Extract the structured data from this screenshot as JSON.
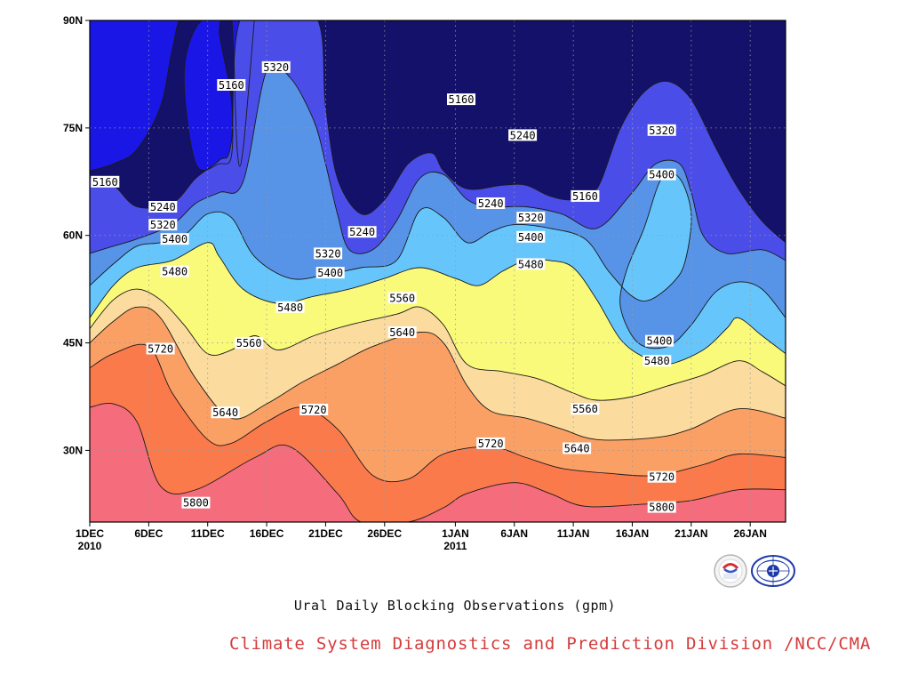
{
  "chart_data": {
    "type": "contour",
    "title": "Ural Daily Blocking Observations (gpm)",
    "credit": "Climate System Diagnostics and Prediction Division /NCC/CMA",
    "x_tick_labels": [
      {
        "t": 1,
        "line1": "1DEC",
        "line2": "2010"
      },
      {
        "t": 6,
        "line1": "6DEC",
        "line2": ""
      },
      {
        "t": 11,
        "line1": "11DEC",
        "line2": ""
      },
      {
        "t": 16,
        "line1": "16DEC",
        "line2": ""
      },
      {
        "t": 21,
        "line1": "21DEC",
        "line2": ""
      },
      {
        "t": 26,
        "line1": "26DEC",
        "line2": ""
      },
      {
        "t": 32,
        "line1": "1JAN",
        "line2": "2011"
      },
      {
        "t": 37,
        "line1": "6JAN",
        "line2": ""
      },
      {
        "t": 42,
        "line1": "11JAN",
        "line2": ""
      },
      {
        "t": 47,
        "line1": "16JAN",
        "line2": ""
      },
      {
        "t": 52,
        "line1": "21JAN",
        "line2": ""
      },
      {
        "t": 57,
        "line1": "26JAN",
        "line2": ""
      }
    ],
    "x_range": [
      1,
      60
    ],
    "y_tick_labels": [
      {
        "lat": 30,
        "label": "30N"
      },
      {
        "lat": 45,
        "label": "45N"
      },
      {
        "lat": 60,
        "label": "60N"
      },
      {
        "lat": 75,
        "label": "75N"
      },
      {
        "lat": 90,
        "label": "90N"
      }
    ],
    "y_range": [
      20,
      90
    ],
    "grid": true,
    "contour_levels": [
      5160,
      5240,
      5320,
      5400,
      5480,
      5560,
      5640,
      5720,
      5800
    ],
    "fill_colors": [
      "#13116a",
      "#1a17e6",
      "#4b4de9",
      "#5793e6",
      "#66c6fc",
      "#fafa7a",
      "#fbdc9e",
      "#fba065",
      "#fb7a4c",
      "#f56d7c"
    ],
    "contour_isolines": [
      {
        "level": 5800,
        "points": [
          [
            1,
            36
          ],
          [
            3,
            36.5
          ],
          [
            5,
            34
          ],
          [
            7,
            25
          ],
          [
            10,
            24.5
          ],
          [
            15,
            29
          ],
          [
            18,
            30.5
          ],
          [
            22,
            24
          ],
          [
            24,
            20
          ],
          [
            28,
            20
          ],
          [
            31,
            22
          ],
          [
            33,
            24
          ],
          [
            37,
            25.5
          ],
          [
            40,
            24
          ],
          [
            43,
            22.2
          ],
          [
            48,
            22.5
          ],
          [
            52,
            23
          ],
          [
            56,
            24.5
          ],
          [
            60,
            24.5
          ]
        ]
      },
      {
        "level": 5720,
        "points": [
          [
            1,
            41.5
          ],
          [
            3,
            43.5
          ],
          [
            6,
            44.5
          ],
          [
            8,
            38
          ],
          [
            11,
            31.5
          ],
          [
            13,
            31
          ],
          [
            16,
            34
          ],
          [
            19,
            36
          ],
          [
            22,
            33
          ],
          [
            25,
            26.5
          ],
          [
            28,
            26
          ],
          [
            31,
            29.5
          ],
          [
            35,
            30.5
          ],
          [
            38,
            29
          ],
          [
            41,
            27.5
          ],
          [
            45,
            26.8
          ],
          [
            49,
            26.5
          ],
          [
            53,
            28
          ],
          [
            56,
            29.5
          ],
          [
            60,
            29
          ]
        ]
      },
      {
        "level": 5640,
        "points": [
          [
            1,
            45
          ],
          [
            3,
            48
          ],
          [
            5,
            50
          ],
          [
            7,
            48.5
          ],
          [
            10,
            40
          ],
          [
            13,
            34.5
          ],
          [
            16,
            36.5
          ],
          [
            19,
            39.5
          ],
          [
            22,
            42
          ],
          [
            25,
            44.5
          ],
          [
            29,
            46.5
          ],
          [
            31,
            45
          ],
          [
            33,
            39
          ],
          [
            35,
            35.5
          ],
          [
            38,
            34.5
          ],
          [
            41,
            33
          ],
          [
            44,
            31.5
          ],
          [
            49,
            31.8
          ],
          [
            52,
            33
          ],
          [
            56,
            35.8
          ],
          [
            60,
            34.5
          ]
        ]
      },
      {
        "level": 5560,
        "points": [
          [
            1,
            47
          ],
          [
            3,
            51
          ],
          [
            5,
            52.5
          ],
          [
            7,
            51
          ],
          [
            9,
            47.5
          ],
          [
            11,
            43.5
          ],
          [
            13,
            44
          ],
          [
            15,
            46
          ],
          [
            17,
            44
          ],
          [
            20,
            46
          ],
          [
            23,
            47.5
          ],
          [
            27,
            49
          ],
          [
            29,
            50
          ],
          [
            31,
            47.5
          ],
          [
            33,
            42
          ],
          [
            36,
            41
          ],
          [
            39,
            40
          ],
          [
            42,
            38
          ],
          [
            44,
            37
          ],
          [
            47,
            37.5
          ],
          [
            50,
            39
          ],
          [
            53,
            40.5
          ],
          [
            56,
            42.5
          ],
          [
            58,
            41
          ],
          [
            60,
            39
          ]
        ]
      },
      {
        "level": 5480,
        "points": [
          [
            1,
            48.5
          ],
          [
            3,
            53
          ],
          [
            5,
            55.5
          ],
          [
            8,
            56.5
          ],
          [
            11,
            59
          ],
          [
            12,
            57
          ],
          [
            14,
            52.5
          ],
          [
            17,
            50.5
          ],
          [
            20,
            51.5
          ],
          [
            23,
            52.5
          ],
          [
            26,
            54
          ],
          [
            29,
            55.5
          ],
          [
            32,
            54
          ],
          [
            34,
            53
          ],
          [
            36,
            55
          ],
          [
            38,
            56.5
          ],
          [
            40,
            56.5
          ],
          [
            42,
            55.5
          ],
          [
            44,
            51
          ],
          [
            46,
            45.5
          ],
          [
            48,
            43
          ],
          [
            50,
            42
          ],
          [
            53,
            44
          ],
          [
            55,
            47
          ],
          [
            56,
            48.5
          ],
          [
            58,
            46
          ],
          [
            60,
            43.5
          ]
        ]
      },
      {
        "level": 5400,
        "points": [
          [
            1,
            53
          ],
          [
            3,
            56
          ],
          [
            5,
            58.5
          ],
          [
            7,
            59
          ],
          [
            9,
            60
          ],
          [
            11,
            63
          ],
          [
            13,
            62.5
          ],
          [
            15,
            57
          ],
          [
            18,
            54
          ],
          [
            21,
            54.5
          ],
          [
            24,
            55.5
          ],
          [
            27,
            56.5
          ],
          [
            29,
            63.5
          ],
          [
            31,
            62.5
          ],
          [
            33,
            59
          ],
          [
            35,
            60.5
          ],
          [
            37,
            61.5
          ],
          [
            40,
            61
          ],
          [
            43,
            59.5
          ],
          [
            45,
            55
          ],
          [
            47,
            51.5
          ],
          [
            48.5,
            51
          ],
          [
            50.5,
            53.5
          ],
          [
            51.5,
            56.5
          ],
          [
            52,
            63
          ],
          [
            51,
            68
          ],
          [
            49.5,
            68
          ],
          [
            48,
            61
          ],
          [
            46.5,
            55
          ],
          [
            46,
            50
          ],
          [
            47.5,
            45
          ],
          [
            50,
            44.5
          ],
          [
            52,
            47.5
          ],
          [
            54,
            52
          ],
          [
            56,
            53.5
          ],
          [
            58,
            52.5
          ],
          [
            60,
            48.5
          ]
        ]
      },
      {
        "level": 5320,
        "points": [
          [
            1,
            57.5
          ],
          [
            3,
            58.5
          ],
          [
            5,
            59.5
          ],
          [
            8,
            61.5
          ],
          [
            10,
            64.5
          ],
          [
            12,
            66
          ],
          [
            14,
            67.5
          ],
          [
            16,
            83
          ],
          [
            18,
            82
          ],
          [
            20,
            76
          ],
          [
            21,
            70
          ],
          [
            22,
            63
          ],
          [
            23,
            58
          ],
          [
            25,
            58
          ],
          [
            27,
            62
          ],
          [
            29,
            68
          ],
          [
            31,
            68.5
          ],
          [
            33,
            65
          ],
          [
            35,
            64
          ],
          [
            38,
            64
          ],
          [
            41,
            63
          ],
          [
            44,
            61
          ],
          [
            47,
            66
          ],
          [
            49,
            70
          ],
          [
            51,
            70
          ],
          [
            52,
            66
          ],
          [
            53,
            60
          ],
          [
            55,
            57.5
          ],
          [
            58,
            58
          ],
          [
            60,
            56.5
          ]
        ]
      },
      {
        "level": 5240,
        "points": [
          [
            1,
            68
          ],
          [
            3,
            67
          ],
          [
            5,
            64
          ],
          [
            8,
            64.5
          ],
          [
            10,
            68
          ],
          [
            12,
            70.5
          ],
          [
            13,
            73
          ],
          [
            14,
            91
          ],
          [
            20,
            91
          ],
          [
            21,
            78
          ],
          [
            22,
            68
          ],
          [
            24,
            63
          ],
          [
            26,
            65
          ],
          [
            28,
            70
          ],
          [
            30,
            71.5
          ],
          [
            31,
            69
          ],
          [
            33,
            66.5
          ],
          [
            36,
            67
          ],
          [
            38,
            67
          ],
          [
            40,
            65.5
          ],
          [
            42,
            65
          ],
          [
            44,
            66.5
          ],
          [
            46,
            75
          ],
          [
            48,
            80
          ],
          [
            50,
            81.5
          ],
          [
            52,
            79
          ],
          [
            54,
            72.5
          ],
          [
            56,
            66.5
          ],
          [
            58,
            62
          ],
          [
            60,
            59
          ]
        ]
      },
      {
        "level": 5160,
        "points": [
          [
            1,
            69
          ],
          [
            3,
            70
          ],
          [
            5,
            72
          ],
          [
            7,
            78
          ],
          [
            8,
            86
          ],
          [
            9,
            91
          ],
          [
            12,
            91
          ],
          [
            12,
            88
          ],
          [
            13,
            79
          ],
          [
            13,
            71
          ],
          [
            12,
            70
          ],
          [
            10,
            70
          ],
          [
            9,
            82
          ],
          [
            10,
            89
          ],
          [
            12,
            91
          ],
          [
            13,
            91
          ],
          [
            13.5,
            72
          ],
          [
            14,
            72
          ],
          [
            15,
            91
          ]
        ]
      }
    ],
    "contour_labels": [
      {
        "x": 2.3,
        "y": 67.5,
        "text": "5160"
      },
      {
        "x": 13.0,
        "y": 81.0,
        "text": "5160"
      },
      {
        "x": 16.8,
        "y": 83.5,
        "text": "5320"
      },
      {
        "x": 7.2,
        "y": 64.0,
        "text": "5240"
      },
      {
        "x": 7.2,
        "y": 61.5,
        "text": "5320"
      },
      {
        "x": 8.2,
        "y": 59.5,
        "text": "5400"
      },
      {
        "x": 8.2,
        "y": 55.0,
        "text": "5480"
      },
      {
        "x": 24.1,
        "y": 60.5,
        "text": "5240"
      },
      {
        "x": 21.2,
        "y": 57.5,
        "text": "5320"
      },
      {
        "x": 21.4,
        "y": 54.8,
        "text": "5400"
      },
      {
        "x": 18.0,
        "y": 50.0,
        "text": "5480"
      },
      {
        "x": 14.5,
        "y": 45.0,
        "text": "5560"
      },
      {
        "x": 7.0,
        "y": 44.2,
        "text": "5720"
      },
      {
        "x": 12.5,
        "y": 35.3,
        "text": "5640"
      },
      {
        "x": 20.0,
        "y": 35.7,
        "text": "5720"
      },
      {
        "x": 10.0,
        "y": 22.7,
        "text": "5800"
      },
      {
        "x": 27.5,
        "y": 51.3,
        "text": "5560"
      },
      {
        "x": 27.5,
        "y": 46.5,
        "text": "5640"
      },
      {
        "x": 32.5,
        "y": 79.0,
        "text": "5160"
      },
      {
        "x": 35.0,
        "y": 64.5,
        "text": "5240"
      },
      {
        "x": 37.7,
        "y": 74.0,
        "text": "5240"
      },
      {
        "x": 38.4,
        "y": 62.5,
        "text": "5320"
      },
      {
        "x": 38.4,
        "y": 59.8,
        "text": "5400"
      },
      {
        "x": 38.4,
        "y": 56.0,
        "text": "5480"
      },
      {
        "x": 35.0,
        "y": 31.0,
        "text": "5720"
      },
      {
        "x": 43.0,
        "y": 65.5,
        "text": "5160"
      },
      {
        "x": 43.0,
        "y": 35.8,
        "text": "5560"
      },
      {
        "x": 42.3,
        "y": 30.3,
        "text": "5640"
      },
      {
        "x": 49.5,
        "y": 74.7,
        "text": "5320"
      },
      {
        "x": 49.5,
        "y": 68.5,
        "text": "5400"
      },
      {
        "x": 49.3,
        "y": 45.3,
        "text": "5400"
      },
      {
        "x": 49.1,
        "y": 42.5,
        "text": "5480"
      },
      {
        "x": 49.5,
        "y": 26.3,
        "text": "5720"
      },
      {
        "x": 49.5,
        "y": 22.1,
        "text": "5800"
      }
    ]
  }
}
